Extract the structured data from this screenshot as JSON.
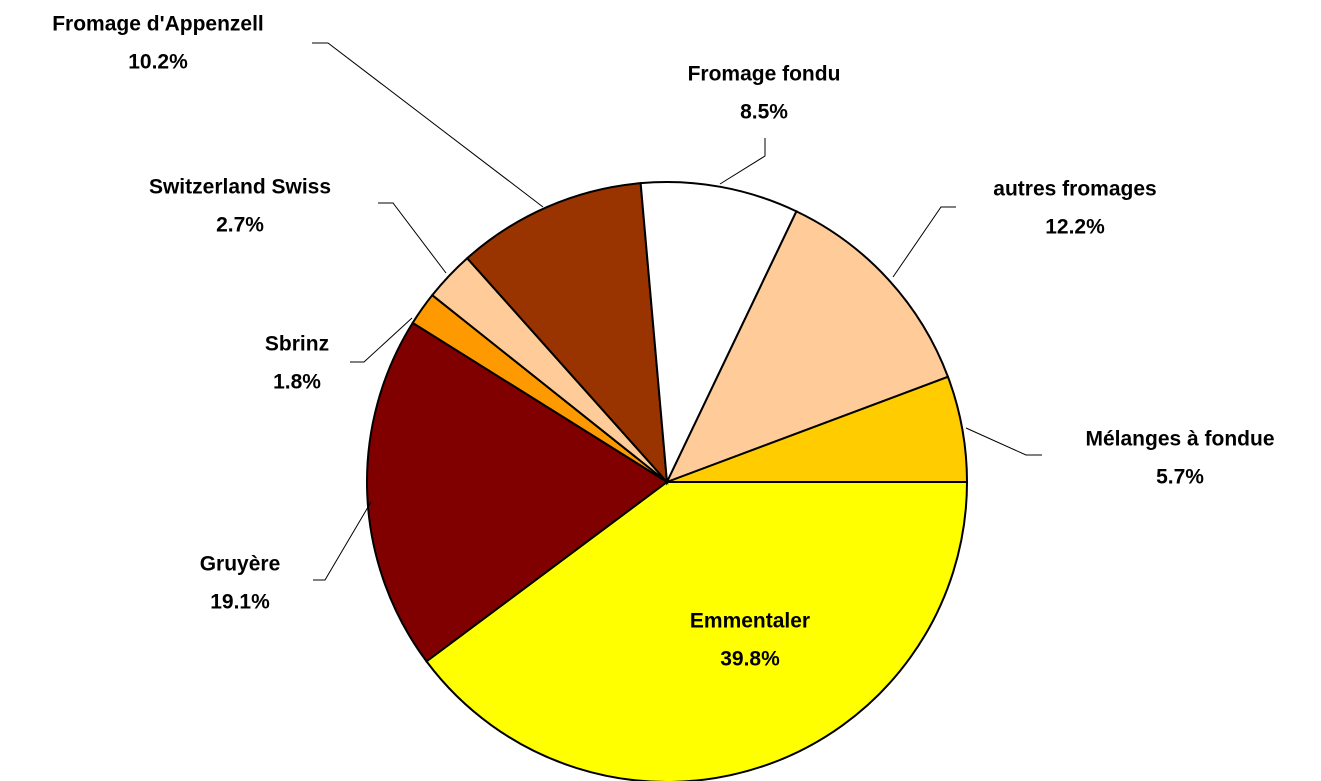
{
  "chart_data": {
    "type": "pie",
    "categories": [
      "Emmentaler",
      "Gruyère",
      "Sbrinz",
      "Switzerland Swiss",
      "Fromage d'Appenzell",
      "Fromage fondu",
      "autres fromages",
      "Mélanges à fondue"
    ],
    "values": [
      39.8,
      19.1,
      1.8,
      2.7,
      10.2,
      8.5,
      12.2,
      5.7
    ],
    "value_labels": [
      "39.8%",
      "19.1%",
      "1.8%",
      "2.7%",
      "10.2%",
      "8.5%",
      "12.2%",
      "5.7%"
    ],
    "colors": [
      "#ffff00",
      "#800000",
      "#ff9900",
      "#ffcc99",
      "#993300",
      "#ffffff",
      "#ffcc99",
      "#ffcc00"
    ]
  }
}
